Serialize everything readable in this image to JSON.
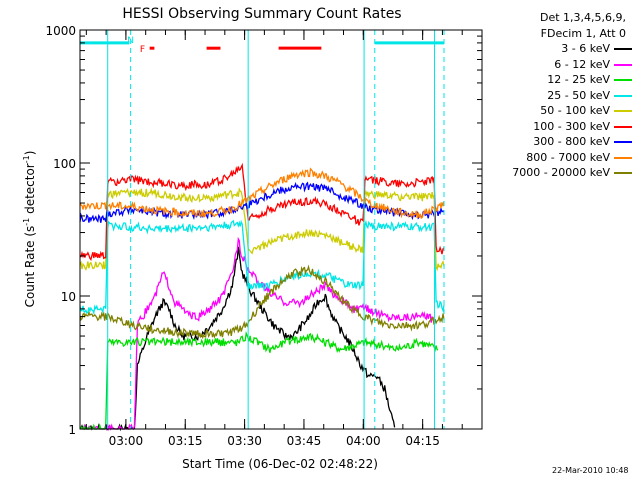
{
  "chart_data": {
    "type": "line",
    "title": "HESSI Observing Summary Count Rates",
    "xlabel": "Start Time (06-Dec-02 02:48:22)",
    "ylabel_main": "Count Rate (s",
    "ylabel_exp1": "-1",
    "ylabel_mid": " detector",
    "ylabel_exp2": "-1",
    "ylabel_end": ")",
    "y_scale": "log",
    "ylim": [
      1,
      1000
    ],
    "y_ticks": [
      1,
      10,
      100,
      1000
    ],
    "x_range_minutes": [
      0,
      101.6
    ],
    "x_ticks": [
      {
        "label": "03:00",
        "min": 11.6
      },
      {
        "label": "03:15",
        "min": 26.6
      },
      {
        "label": "03:30",
        "min": 41.6
      },
      {
        "label": "03:45",
        "min": 56.6
      },
      {
        "label": "04:00",
        "min": 71.6
      },
      {
        "label": "04:15",
        "min": 86.6
      }
    ],
    "legend_header": [
      "Det 1,3,4,5,6,9,",
      "FDecim 1, Att 0"
    ],
    "legend_placement": "right",
    "series": [
      {
        "name": "3 - 6 keV",
        "color": "#000000",
        "points": [
          [
            0,
            1
          ],
          [
            13.8,
            1
          ],
          [
            14.5,
            3
          ],
          [
            17,
            5
          ],
          [
            19,
            7
          ],
          [
            21,
            9
          ],
          [
            22.5,
            8
          ],
          [
            24,
            6
          ],
          [
            26,
            5
          ],
          [
            28,
            5
          ],
          [
            30,
            5
          ],
          [
            33,
            6
          ],
          [
            36,
            8
          ],
          [
            38.5,
            12
          ],
          [
            40,
            22
          ],
          [
            41,
            15
          ],
          [
            43,
            11
          ],
          [
            46,
            8
          ],
          [
            49,
            6
          ],
          [
            52,
            5
          ],
          [
            54,
            5
          ],
          [
            56,
            6
          ],
          [
            58,
            7
          ],
          [
            60,
            9
          ],
          [
            62,
            10
          ],
          [
            63,
            8
          ],
          [
            65,
            6
          ],
          [
            67,
            5
          ],
          [
            69,
            4
          ],
          [
            71,
            3
          ],
          [
            73,
            2.5
          ],
          [
            75,
            2.5
          ],
          [
            77,
            2
          ],
          [
            79.5,
            1
          ]
        ]
      },
      {
        "name": "6 - 12 keV",
        "color": "#ff00ff",
        "points": [
          [
            0,
            1
          ],
          [
            13.8,
            1
          ],
          [
            14.5,
            6
          ],
          [
            17,
            8
          ],
          [
            19,
            10
          ],
          [
            21,
            15
          ],
          [
            22.5,
            12
          ],
          [
            24,
            9
          ],
          [
            26,
            8
          ],
          [
            28,
            7
          ],
          [
            30,
            7
          ],
          [
            33,
            8
          ],
          [
            36,
            10
          ],
          [
            38.5,
            15
          ],
          [
            40,
            26
          ],
          [
            41,
            20
          ],
          [
            43,
            15
          ],
          [
            46,
            12
          ],
          [
            49,
            10
          ],
          [
            52,
            9
          ],
          [
            54,
            9
          ],
          [
            56,
            9
          ],
          [
            58,
            10
          ],
          [
            60,
            11
          ],
          [
            62,
            12
          ],
          [
            63,
            11
          ],
          [
            65,
            10
          ],
          [
            67,
            9
          ],
          [
            69,
            8
          ],
          [
            71,
            8
          ],
          [
            73,
            8
          ],
          [
            75,
            7.5
          ],
          [
            78,
            7
          ],
          [
            81,
            7
          ],
          [
            84,
            7
          ],
          [
            86,
            7
          ],
          [
            88,
            7
          ],
          [
            89.5,
            6.5
          ]
        ]
      },
      {
        "name": "12 - 25 keV",
        "color": "#00dd00",
        "points": [
          [
            0,
            1
          ],
          [
            6.5,
            1
          ],
          [
            7,
            4.5
          ],
          [
            13.8,
            4.5
          ],
          [
            14.5,
            4.5
          ],
          [
            30,
            4.5
          ],
          [
            40,
            4.5
          ],
          [
            42,
            5
          ],
          [
            48,
            4
          ],
          [
            52,
            4.5
          ],
          [
            58,
            5
          ],
          [
            66,
            4
          ],
          [
            72,
            4.5
          ],
          [
            80,
            4
          ],
          [
            86,
            4.5
          ],
          [
            90.5,
            4
          ]
        ]
      },
      {
        "name": "25 - 50 keV",
        "color": "#00e5e5",
        "points": [
          [
            0,
            8
          ],
          [
            6.5,
            8
          ],
          [
            7,
            34
          ],
          [
            20,
            32
          ],
          [
            33,
            33
          ],
          [
            41,
            35
          ],
          [
            42.5,
            12
          ],
          [
            48,
            12
          ],
          [
            53,
            14
          ],
          [
            58,
            15
          ],
          [
            63,
            14
          ],
          [
            68,
            12
          ],
          [
            71.5,
            12
          ],
          [
            72,
            34
          ],
          [
            85,
            33
          ],
          [
            89.5,
            33
          ],
          [
            90,
            9
          ],
          [
            92,
            8
          ]
        ]
      },
      {
        "name": "50 - 100 keV",
        "color": "#cccc00",
        "points": [
          [
            0,
            17
          ],
          [
            6.5,
            17
          ],
          [
            7,
            58
          ],
          [
            13.8,
            60
          ],
          [
            18,
            60
          ],
          [
            26,
            55
          ],
          [
            33,
            55
          ],
          [
            38,
            58
          ],
          [
            41,
            60
          ],
          [
            42.5,
            22
          ],
          [
            48,
            25
          ],
          [
            53,
            28
          ],
          [
            58,
            30
          ],
          [
            63,
            28
          ],
          [
            68,
            24
          ],
          [
            71.5,
            22
          ],
          [
            72,
            58
          ],
          [
            82,
            56
          ],
          [
            86,
            55
          ],
          [
            89.5,
            58
          ],
          [
            90,
            17
          ],
          [
            92,
            17
          ]
        ]
      },
      {
        "name": "100 - 300 keV",
        "color": "#ff0000",
        "points": [
          [
            0,
            20
          ],
          [
            6.5,
            20
          ],
          [
            7,
            72
          ],
          [
            13.8,
            75
          ],
          [
            18,
            72
          ],
          [
            26,
            68
          ],
          [
            33,
            70
          ],
          [
            38,
            80
          ],
          [
            41,
            95
          ],
          [
            42.5,
            38
          ],
          [
            48,
            45
          ],
          [
            53,
            50
          ],
          [
            58,
            52
          ],
          [
            63,
            48
          ],
          [
            68,
            40
          ],
          [
            71.5,
            35
          ],
          [
            72,
            75
          ],
          [
            82,
            70
          ],
          [
            86,
            72
          ],
          [
            89.5,
            75
          ],
          [
            90,
            22
          ],
          [
            92,
            22
          ]
        ]
      },
      {
        "name": "300 - 800 keV",
        "color": "#0000ff",
        "points": [
          [
            0,
            38
          ],
          [
            6.5,
            38
          ],
          [
            7,
            42
          ],
          [
            13.8,
            45
          ],
          [
            20,
            42
          ],
          [
            26,
            41
          ],
          [
            33,
            41
          ],
          [
            38,
            44
          ],
          [
            42,
            48
          ],
          [
            46,
            55
          ],
          [
            50,
            62
          ],
          [
            54,
            66
          ],
          [
            58,
            67
          ],
          [
            62,
            64
          ],
          [
            66,
            57
          ],
          [
            70,
            50
          ],
          [
            73,
            46
          ],
          [
            78,
            43
          ],
          [
            82,
            41
          ],
          [
            86,
            40
          ],
          [
            89.5,
            42
          ],
          [
            92,
            44
          ]
        ]
      },
      {
        "name": "800 - 7000 keV",
        "color": "#ff8000",
        "points": [
          [
            0,
            48
          ],
          [
            6.5,
            48
          ],
          [
            7,
            48
          ],
          [
            13.8,
            47
          ],
          [
            20,
            44
          ],
          [
            26,
            42
          ],
          [
            33,
            42
          ],
          [
            38,
            45
          ],
          [
            42,
            52
          ],
          [
            46,
            62
          ],
          [
            50,
            72
          ],
          [
            54,
            82
          ],
          [
            58,
            85
          ],
          [
            62,
            80
          ],
          [
            66,
            70
          ],
          [
            70,
            58
          ],
          [
            73,
            50
          ],
          [
            78,
            45
          ],
          [
            82,
            42
          ],
          [
            86,
            41
          ],
          [
            89.5,
            45
          ],
          [
            92,
            50
          ]
        ]
      },
      {
        "name": "7000 - 20000 keV",
        "color": "#808000",
        "points": [
          [
            0,
            7
          ],
          [
            6.5,
            7
          ],
          [
            10,
            6.5
          ],
          [
            14,
            6
          ],
          [
            20,
            5.5
          ],
          [
            26,
            5.3
          ],
          [
            33,
            5.2
          ],
          [
            38,
            5.3
          ],
          [
            42,
            6
          ],
          [
            46,
            9
          ],
          [
            50,
            12
          ],
          [
            54,
            15
          ],
          [
            58,
            15.5
          ],
          [
            62,
            13
          ],
          [
            66,
            9.5
          ],
          [
            70,
            7.5
          ],
          [
            74,
            6.5
          ],
          [
            78,
            6
          ],
          [
            82,
            6
          ],
          [
            86,
            6
          ],
          [
            89.5,
            6.5
          ],
          [
            92,
            7
          ]
        ]
      }
    ],
    "markers": {
      "flag_letters": [
        {
          "text": "N",
          "color": "#00e5e5",
          "min": 12.8
        },
        {
          "text": "F",
          "color": "#ff0000",
          "min": 15.8
        }
      ],
      "saa_color": "#00e5e5",
      "saa_level": 800,
      "saa_spans": [
        [
          0,
          12.5
        ],
        [
          74.5,
          92
        ]
      ],
      "flare_color": "#ff0000",
      "flare_level": 730,
      "flare_spans": [
        [
          17.6,
          18.8
        ],
        [
          32,
          35.5
        ],
        [
          50.2,
          61
        ]
      ],
      "solid_vlines": [
        7,
        42.5,
        71.8,
        89.6
      ],
      "dashed_vlines": [
        12.8,
        74.5,
        92
      ]
    }
  },
  "footer": {
    "date": "22-Mar-2010 10:48"
  }
}
